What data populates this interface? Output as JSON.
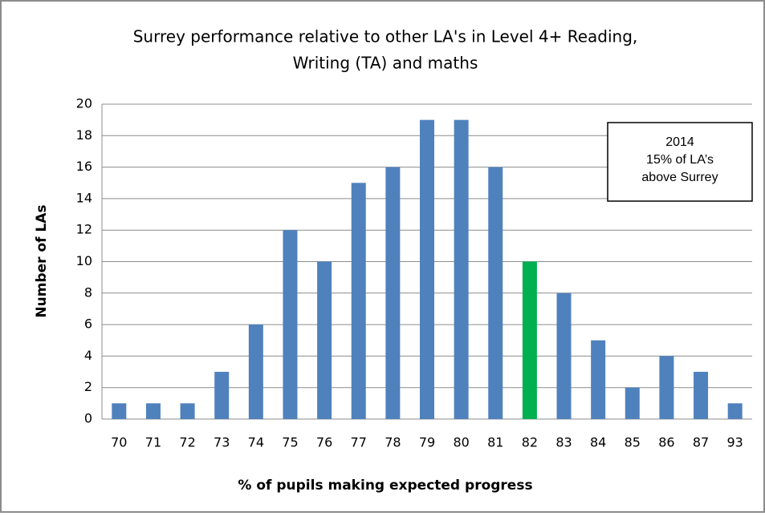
{
  "chart_data": {
    "type": "bar",
    "title": [
      "Surrey performance relative to other LA's in Level 4+ Reading,",
      "Writing (TA) and maths"
    ],
    "x_label": "% of pupils making expected progress",
    "y_label": "Number of LAs",
    "categories": [
      "70",
      "71",
      "72",
      "73",
      "74",
      "75",
      "76",
      "77",
      "78",
      "79",
      "80",
      "81",
      "82",
      "83",
      "84",
      "85",
      "86",
      "87",
      "93"
    ],
    "values": [
      1,
      1,
      1,
      3,
      6,
      12,
      10,
      15,
      16,
      19,
      19,
      16,
      10,
      8,
      5,
      2,
      4,
      3,
      1
    ],
    "colors": [
      "#4f81bd",
      "#4f81bd",
      "#4f81bd",
      "#4f81bd",
      "#4f81bd",
      "#4f81bd",
      "#4f81bd",
      "#4f81bd",
      "#4f81bd",
      "#4f81bd",
      "#4f81bd",
      "#4f81bd",
      "#00b050",
      "#4f81bd",
      "#4f81bd",
      "#4f81bd",
      "#4f81bd",
      "#4f81bd",
      "#4f81bd"
    ],
    "ylim": [
      0,
      20
    ],
    "yticks": [
      0,
      2,
      4,
      6,
      8,
      10,
      12,
      14,
      16,
      18,
      20
    ],
    "grid": true,
    "annotation": [
      "2014",
      "15% of LA’s",
      "above Surrey"
    ]
  }
}
